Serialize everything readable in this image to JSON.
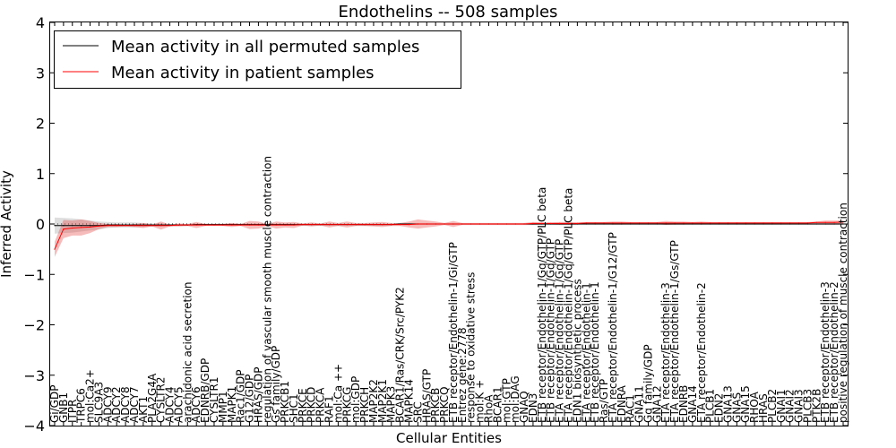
{
  "chart_data": {
    "type": "line",
    "title": "Endothelins -- 508 samples",
    "xlabel": "Cellular Entities",
    "ylabel": "Inferred Activity",
    "ylim": [
      -4,
      4
    ],
    "yticks": [
      -4,
      -3,
      -2,
      -1,
      0,
      1,
      2,
      3,
      4
    ],
    "legend": {
      "position": "top-left",
      "entries": [
        {
          "label": "Mean activity in all permuted samples",
          "color": "#000000"
        },
        {
          "label": "Mean activity in patient samples",
          "color": "#ff0000"
        }
      ]
    },
    "categories": [
      "Gi/GDP",
      "GNB1",
      "ITPR",
      "TRPC6",
      "mol:Ca2+",
      "SLC9A3",
      "ADCY9",
      "ADCY2",
      "ADCY8",
      "ADCY7",
      "AKT1",
      "PLA2G4A",
      "CYSLTR2",
      "ADCY4",
      "ADCY5",
      "arachidonic acid secretion",
      "ADCY6",
      "EDNRB/GDP",
      "CYSLTR1",
      "MMP1",
      "MAPK1",
      "Rac1/GDP",
      "G12/GDP",
      "HRAS/GDP",
      "regulation of vascular smooth muscle contraction",
      "Gs family/GDP",
      "PRKCB1",
      "SHC1",
      "PRKCE",
      "PRKCD",
      "PRKCA",
      "RAF1",
      "mol:Ca ++",
      "PRKCG",
      "mol:GDP",
      "PRKCH",
      "MAP2K2",
      "MAP2K1",
      "MAPK3",
      "BCAR1/Ras/CRK/Src/PYK2",
      "MAPK14",
      "SRC",
      "HRAS/GTP",
      "PRKCB",
      "PRKCQ",
      "ETB receptor/Endothelin-1/Gi/GTP",
      "Entrez gene:2778",
      "response to oxidative stress",
      "mol:K +",
      "RhoA",
      "BCAR1",
      "mol:GTP",
      "mol:DAG",
      "GNAQ",
      "EDN3",
      "ETB receptor/Endothelin-1/Gq/GTP/PLC beta",
      "ETB receptor/Endothelin-1/Gq/GTP",
      "ETA receptor/Endothelin-1/Gq/GTP",
      "ETA receptor/Endothelin-1/Gq/GTP/PLC beta",
      "EDN1 biosynthetic process",
      "ETA receptor/Endothelin-1",
      "ETB receptor/Endothelin-1",
      "Ras/GTP",
      "ETA receptor/Endothelin-1/G12/GTP",
      "EDNRA",
      "RAC1",
      "GNA11",
      "Gq family/GDP",
      "GNA12",
      "ETA receptor/Endothelin-3",
      "ETA receptor/Endothelin-1/Gs/GTP",
      "EDNRB",
      "GNA14",
      "ETA receptor/Endothelin-2",
      "PLCB1",
      "EDN2",
      "GNA13",
      "GNAS",
      "GNA15",
      "RHOA",
      "HRAS",
      "PLCB2",
      "GNAI1",
      "GNAI2",
      "GNAI3",
      "PLCB3",
      "PTK2B",
      "ETB receptor/Endothelin-3",
      "ETB receptor/Endothelin-2",
      "positive regulation of muscle contraction"
    ],
    "series": [
      {
        "name": "Mean activity in all permuted samples",
        "color": "#000000",
        "values": [
          -0.03,
          -0.03,
          -0.03,
          -0.03,
          -0.03,
          -0.03,
          -0.02,
          -0.02,
          -0.02,
          -0.02,
          -0.02,
          -0.02,
          -0.02,
          -0.02,
          -0.02,
          -0.02,
          -0.01,
          -0.01,
          -0.01,
          -0.01,
          -0.01,
          -0.01,
          -0.01,
          -0.01,
          -0.01,
          -0.01,
          -0.01,
          -0.01,
          -0.01,
          -0.01,
          -0.01,
          -0.01,
          -0.01,
          -0.01,
          -0.01,
          -0.01,
          -0.01,
          -0.01,
          -0.01,
          0,
          0,
          0,
          0,
          0,
          0,
          0,
          0,
          0,
          0,
          0,
          0,
          0,
          0,
          0,
          0,
          0,
          0,
          0,
          0,
          0,
          0,
          0,
          0,
          0,
          0,
          0,
          0,
          0,
          0,
          0,
          0,
          0,
          0,
          0,
          0,
          0,
          0,
          0,
          0,
          0,
          0,
          0,
          0,
          0,
          0,
          0,
          0,
          0,
          0,
          0
        ],
        "band": [
          0.16,
          0.15,
          0.14,
          0.12,
          0.1,
          0.08,
          0.06,
          0.05,
          0.05,
          0.05,
          0.04,
          0.03,
          0.03,
          0.02,
          0.02,
          0.02,
          0.02,
          0.02,
          0.02,
          0.02,
          0.02,
          0.02,
          0.02,
          0.02,
          0.02,
          0.02,
          0.02,
          0.02,
          0.02,
          0.02,
          0.02,
          0.02,
          0.02,
          0.02,
          0.02,
          0.02,
          0.02,
          0.02,
          0.02,
          0.02,
          0.02,
          0.02,
          0.02,
          0.02,
          0.02,
          0.02,
          0.02,
          0.02,
          0.02,
          0.02,
          0.02,
          0.02,
          0.02,
          0.02,
          0.02,
          0.02,
          0.02,
          0.02,
          0.02,
          0.02,
          0.02,
          0.02,
          0.02,
          0.02,
          0.02,
          0.02,
          0.02,
          0.02,
          0.02,
          0.02,
          0.02,
          0.02,
          0.02,
          0.02,
          0.02,
          0.02,
          0.02,
          0.02,
          0.02,
          0.02,
          0.02,
          0.02,
          0.02,
          0.02,
          0.02,
          0.02,
          0.02,
          0.02,
          0.02,
          0.02
        ]
      },
      {
        "name": "Mean activity in patient samples",
        "color": "#ff0000",
        "values": [
          -0.5,
          -0.1,
          -0.08,
          -0.07,
          -0.06,
          -0.04,
          -0.03,
          -0.03,
          -0.03,
          -0.03,
          -0.03,
          -0.03,
          -0.03,
          -0.03,
          -0.02,
          -0.02,
          -0.02,
          -0.02,
          -0.02,
          -0.02,
          -0.02,
          -0.02,
          -0.02,
          -0.02,
          -0.02,
          -0.02,
          -0.02,
          -0.02,
          -0.01,
          -0.01,
          -0.01,
          -0.01,
          -0.01,
          -0.01,
          -0.01,
          -0.01,
          -0.01,
          -0.01,
          -0.01,
          -0.01,
          -0.01,
          0,
          0,
          0,
          0,
          0,
          0,
          0,
          0,
          0,
          0,
          0,
          0,
          0,
          0.01,
          0.01,
          0.01,
          0.01,
          0.01,
          0.01,
          0.02,
          0.02,
          0.02,
          0.02,
          0.02,
          0.02,
          0.02,
          0.02,
          0.02,
          0.02,
          0.02,
          0.02,
          0.02,
          0.02,
          0.02,
          0.02,
          0.02,
          0.02,
          0.02,
          0.02,
          0.02,
          0.02,
          0.02,
          0.02,
          0.02,
          0.02,
          0.03,
          0.03,
          0.03,
          0.04
        ],
        "band": [
          0.15,
          0.18,
          0.15,
          0.16,
          0.12,
          0.06,
          0.03,
          0.03,
          0.02,
          0.03,
          0.05,
          0.02,
          0.08,
          0.02,
          0.03,
          0.02,
          0.06,
          0.02,
          0.02,
          0.02,
          0.04,
          0.02,
          0.08,
          0.07,
          0.02,
          0.07,
          0.05,
          0.06,
          0.02,
          0.04,
          0.02,
          0.06,
          0.03,
          0.06,
          0.03,
          0.03,
          0.04,
          0.05,
          0.03,
          0.03,
          0.06,
          0.09,
          0.07,
          0.05,
          0.02,
          0.06,
          0.02,
          0.02,
          0.02,
          0.02,
          0.02,
          0.02,
          0.02,
          0.02,
          0.03,
          0.02,
          0.02,
          0.03,
          0.03,
          0.02,
          0.02,
          0.02,
          0.02,
          0.03,
          0.03,
          0.02,
          0.02,
          0.02,
          0.02,
          0.04,
          0.03,
          0.03,
          0.02,
          0.03,
          0.02,
          0.02,
          0.02,
          0.02,
          0.02,
          0.02,
          0.02,
          0.02,
          0.02,
          0.02,
          0.02,
          0.02,
          0.02,
          0.04,
          0.04,
          0.03
        ]
      }
    ]
  }
}
